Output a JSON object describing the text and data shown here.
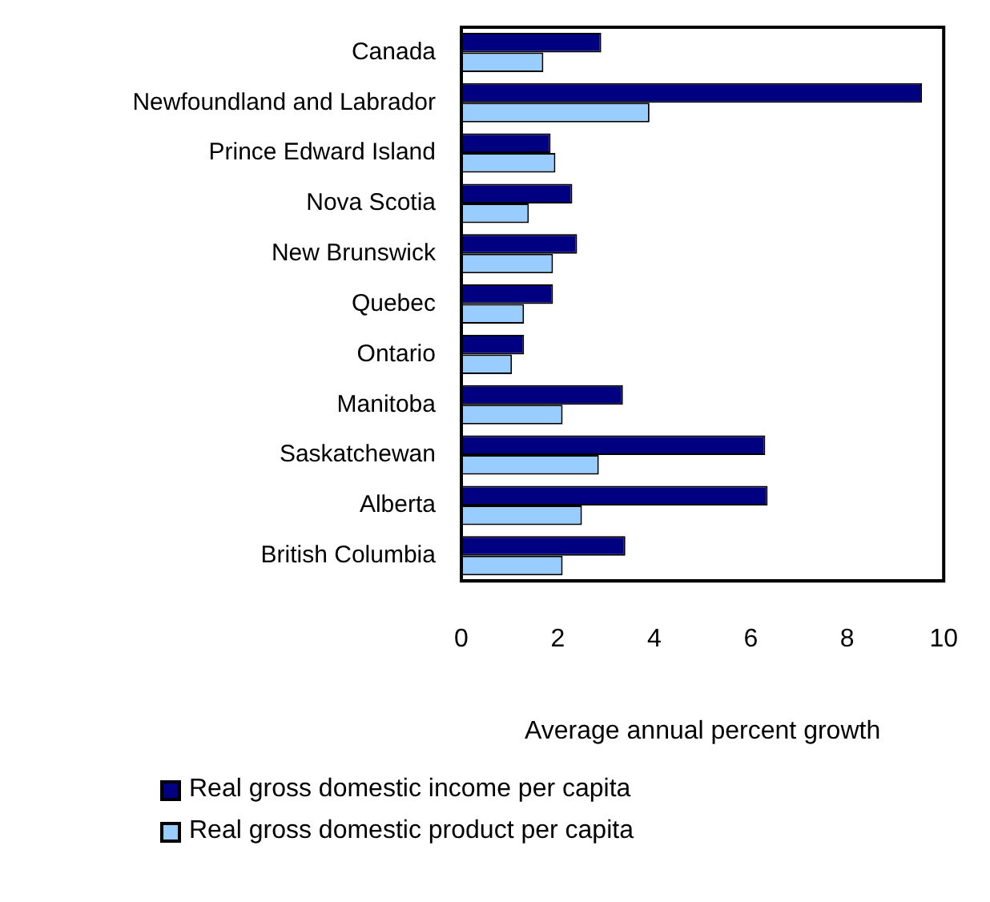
{
  "chart_data": {
    "type": "bar",
    "orientation": "horizontal",
    "xlabel": "Average annual percent growth",
    "categories": [
      "Canada",
      "Newfoundland and Labrador",
      "Prince Edward Island",
      "Nova Scotia",
      "New Brunswick",
      "Quebec",
      "Ontario",
      "Manitoba",
      "Saskatchewan",
      "Alberta",
      "British Columbia"
    ],
    "series": [
      {
        "name": "Real gross domestic income per capita",
        "color": "#000080",
        "values": [
          2.9,
          9.55,
          1.85,
          2.3,
          2.4,
          1.9,
          1.3,
          3.35,
          6.3,
          6.35,
          3.4
        ]
      },
      {
        "name": "Real gross domestic product per capita",
        "color": "#99ccff",
        "values": [
          1.7,
          3.9,
          1.95,
          1.4,
          1.9,
          1.3,
          1.05,
          2.1,
          2.85,
          2.5,
          2.1
        ]
      }
    ],
    "xlim": [
      0,
      10
    ],
    "xticks": [
      0,
      2,
      4,
      6,
      8,
      10
    ],
    "grid": false,
    "legend": "bottom left"
  }
}
